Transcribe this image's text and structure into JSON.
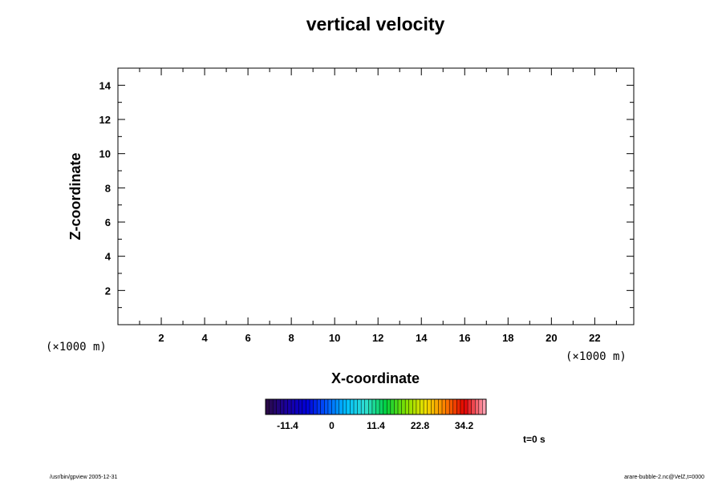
{
  "chart_data": {
    "type": "heatmap",
    "title": "vertical velocity",
    "xlabel": "X-coordinate",
    "ylabel": "Z-coordinate",
    "x_unit": "(×1000 m)",
    "y_unit": "(×1000 m)",
    "xlim": [
      0,
      23.8
    ],
    "ylim": [
      0,
      15
    ],
    "x_ticks": [
      2,
      4,
      6,
      8,
      10,
      12,
      14,
      16,
      18,
      20,
      22
    ],
    "y_ticks": [
      2,
      4,
      6,
      8,
      10,
      12,
      14
    ],
    "x_minor_step": 1,
    "y_minor_step": 1,
    "grid": false,
    "values": [],
    "colorbar": {
      "min": -17.1,
      "max": 39.9,
      "tick_labels": [
        "-11.4",
        "0",
        "11.4",
        "22.8",
        "34.2"
      ],
      "tick_values": [
        -11.4,
        0,
        11.4,
        22.8,
        34.2
      ],
      "colors": [
        "#2a0a4a",
        "#1a00a0",
        "#0000d8",
        "#0058ff",
        "#00c0ff",
        "#30e0d0",
        "#00d040",
        "#80e000",
        "#f0e000",
        "#ff8000",
        "#e00000",
        "#ffa0b0"
      ]
    },
    "time_label": "t=0 s"
  },
  "footer": {
    "left": "/usr/bin/gpview 2005-12-31",
    "right": "arare-bubble-2.nc@VelZ,t=0000"
  }
}
